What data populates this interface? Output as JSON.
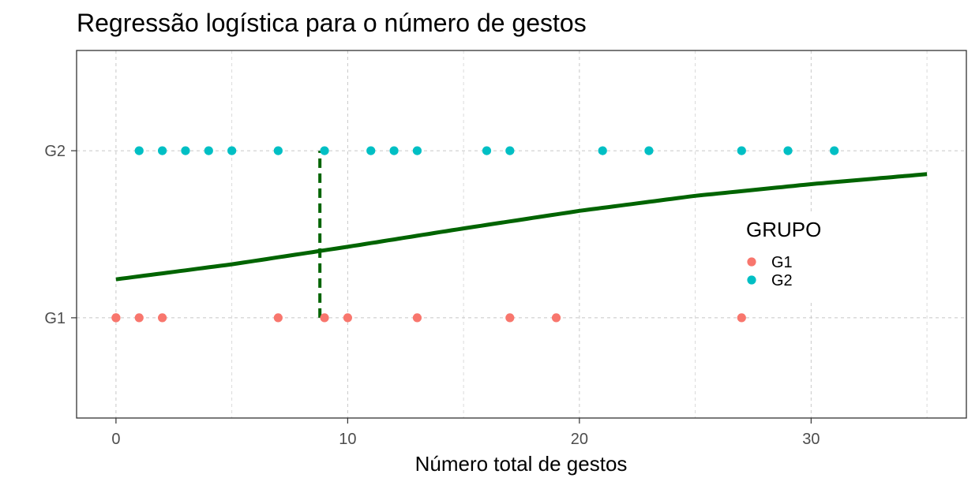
{
  "chart_data": {
    "type": "scatter",
    "title": "Regressão logística para o número de gestos",
    "xlabel": "Número total de gestos",
    "ylabel": "",
    "xlim": [
      -1.7,
      36.7
    ],
    "x_ticks": [
      0,
      10,
      20,
      30
    ],
    "x_tick_labels": [
      "0",
      "10",
      "20",
      "30"
    ],
    "y_categories": [
      "G1",
      "G2"
    ],
    "grid": true,
    "grid_style": "dashed",
    "legend": {
      "title": "GRUPO",
      "placement": "right-inside",
      "entries": [
        "G1",
        "G2"
      ]
    },
    "colors": {
      "G1": "#F8766D",
      "G2": "#00BFC4",
      "curve": "#006400"
    },
    "series": [
      {
        "name": "G1",
        "y": "G1",
        "x": [
          0,
          0,
          1,
          2,
          7,
          9,
          10,
          13,
          17,
          19,
          27
        ]
      },
      {
        "name": "G2",
        "y": "G2",
        "x": [
          1,
          2,
          3,
          4,
          5,
          7,
          9,
          11,
          12,
          13,
          16,
          17,
          21,
          23,
          27,
          29,
          31
        ]
      }
    ],
    "fitted_curve": {
      "x": [
        0,
        5,
        10,
        15,
        20,
        25,
        30,
        35
      ],
      "p": [
        0.23,
        0.32,
        0.425,
        0.535,
        0.64,
        0.73,
        0.8,
        0.86
      ]
    },
    "threshold": {
      "x": 8.8,
      "p_from": 0.0,
      "p_to": 1.0
    }
  }
}
